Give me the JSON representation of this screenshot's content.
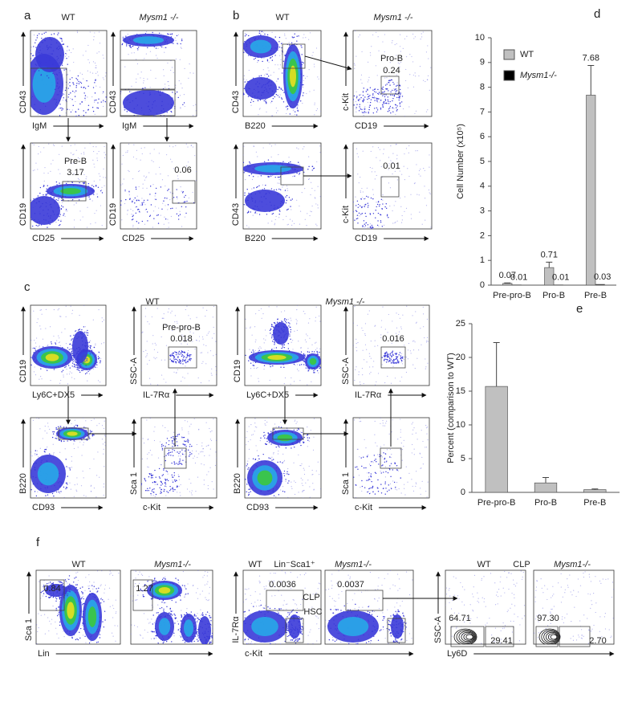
{
  "panels": [
    {
      "label": "a",
      "headers": [
        "WT",
        "Mysm1 -/-"
      ],
      "plots": [
        {
          "y_label": "CD43",
          "x_label": "IgM"
        },
        {
          "y_label": "CD43",
          "x_label": "IgM"
        },
        {
          "y_label": "CD19",
          "x_label": "CD25",
          "gates": [
            "Pre-B",
            "3.17"
          ]
        },
        {
          "y_label": "CD19",
          "x_label": "CD25",
          "gates": [
            "0.06"
          ]
        }
      ]
    },
    {
      "label": "b",
      "headers": [
        "WT",
        "Mysm1 -/-"
      ],
      "plots": [
        {
          "y_label": "CD43",
          "x_label": "B220"
        },
        {
          "y_label": "c-Kit",
          "x_label": "CD19",
          "gates": [
            "Pro-B",
            "0.24"
          ]
        },
        {
          "y_label": "CD43",
          "x_label": "B220"
        },
        {
          "y_label": "c-Kit",
          "x_label": "CD19",
          "gates": [
            "0.01"
          ]
        }
      ]
    },
    {
      "label": "c",
      "headers": [
        "WT",
        "Mysm1 -/-"
      ],
      "plots": [
        {
          "y_label": "CD19",
          "x_label": "Ly6C+DX5"
        },
        {
          "y_label": "SSC-A",
          "x_label": "IL-7Rα",
          "gates": [
            "Pre-pro-B",
            "0.018"
          ]
        },
        {
          "y_label": "CD19",
          "x_label": "Ly6C+DX5"
        },
        {
          "y_label": "SSC-A",
          "x_label": "IL-7Rα",
          "gates": [
            "0.016"
          ]
        },
        {
          "y_label": "B220",
          "x_label": "CD93"
        },
        {
          "y_label": "Sca 1",
          "x_label": "c-Kit"
        },
        {
          "y_label": "B220",
          "x_label": "CD93"
        },
        {
          "y_label": "Sca 1",
          "x_label": "c-Kit"
        }
      ]
    },
    {
      "label": "f",
      "headers": [
        "WT",
        "Mysm1-/-",
        "WT",
        "Lin⁻Sca1⁺",
        "Mysm1-/-",
        "WT",
        "CLP",
        "Mysm1-/-"
      ],
      "plots": [
        {
          "y_label": "Sca 1",
          "x_label": "Lin",
          "gates": [
            "0.84"
          ]
        },
        {
          "gates": [
            "1.27"
          ]
        },
        {
          "y_label": "IL-7Rα",
          "x_label": "c-Kit",
          "gates": [
            "0.0036",
            "CLP",
            "HSC"
          ]
        },
        {
          "gates": [
            "0.0037"
          ]
        },
        {
          "y_label": "SSC-A",
          "x_label": "Ly6D",
          "gates": [
            "64.71",
            "29.41"
          ]
        },
        {
          "gates": [
            "97.30",
            "2.70"
          ]
        }
      ]
    }
  ],
  "chart_data": [
    {
      "type": "bar",
      "panel_label": "d",
      "y_label": "Cell Number (x10⁵)",
      "categories": [
        "Pre-pro-B",
        "Pro-B",
        "Pre-B"
      ],
      "series": [
        {
          "name": "WT",
          "color": "#c0c0c0",
          "values": [
            0.07,
            0.71,
            7.68
          ],
          "errors": [
            0.02,
            0.22,
            1.2
          ]
        },
        {
          "name": "Mysm1-/-",
          "color": "#000000",
          "values": [
            0.01,
            0.01,
            0.03
          ]
        }
      ],
      "ylim": [
        0,
        10
      ],
      "yticks": [
        0,
        1,
        2,
        3,
        4,
        5,
        6,
        7,
        8,
        9,
        10
      ],
      "data_labels": true,
      "legend": "top-left"
    },
    {
      "type": "bar",
      "panel_label": "e",
      "y_label": "Percent (comparison to WT)",
      "categories": [
        "Pre-pro-B",
        "Pro-B",
        "Pre-B"
      ],
      "series": [
        {
          "color": "#c0c0c0",
          "values": [
            15.7,
            1.4,
            0.4
          ],
          "errors": [
            6.5,
            0.8,
            0.1
          ]
        }
      ],
      "ylim": [
        0,
        25
      ],
      "yticks": [
        0,
        5,
        10,
        15,
        20,
        25
      ],
      "data_labels": false
    }
  ]
}
